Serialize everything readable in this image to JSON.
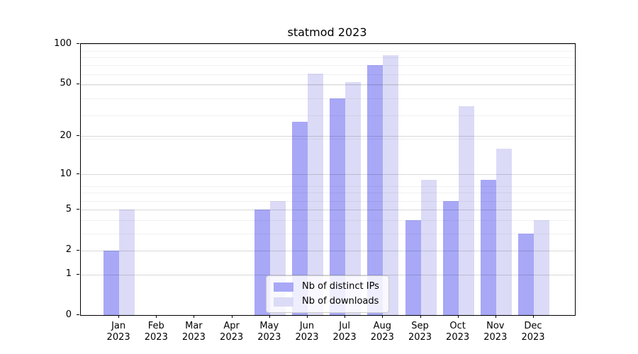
{
  "chart_data": {
    "type": "bar",
    "title": "statmod 2023",
    "months": [
      "Jan",
      "Feb",
      "Mar",
      "Apr",
      "May",
      "Jun",
      "Jul",
      "Aug",
      "Sep",
      "Oct",
      "Nov",
      "Dec"
    ],
    "year": "2023",
    "y_ticks": [
      0,
      1,
      2,
      5,
      10,
      20,
      50,
      100
    ],
    "ylim": [
      0,
      100
    ],
    "y_scale": "log1p",
    "grid": "horizontal major and minor gridlines on",
    "legend_position": "lower center inside plot",
    "series": [
      {
        "name": "Nb of distinct IPs",
        "color": "#a8a8f7",
        "values": [
          2,
          0,
          0,
          0,
          5,
          26,
          39,
          69,
          4,
          6,
          9,
          3
        ]
      },
      {
        "name": "Nb of downloads",
        "color": "#dbdbf7",
        "values": [
          5,
          0,
          0,
          0,
          6,
          60,
          52,
          82,
          9,
          34,
          16,
          4
        ]
      }
    ]
  },
  "colors": {
    "axis": "#000000",
    "grid_major": "#d9d9d9",
    "grid_minor": "#f1f1f1",
    "legend_border": "#cbcbcb",
    "background": "#ffffff"
  }
}
